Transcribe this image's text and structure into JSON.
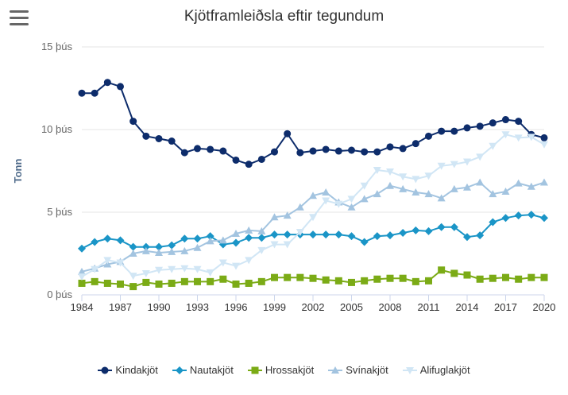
{
  "menu": {
    "icon": "hamburger-menu-icon"
  },
  "chart_data": {
    "type": "line",
    "title": "Kjötframleiðsla eftir tegundum",
    "xlabel": "",
    "ylabel": "Tonn",
    "x": [
      1984,
      1985,
      1986,
      1987,
      1988,
      1989,
      1990,
      1991,
      1992,
      1993,
      1994,
      1995,
      1996,
      1997,
      1998,
      1999,
      2000,
      2001,
      2002,
      2003,
      2004,
      2005,
      2006,
      2007,
      2008,
      2009,
      2010,
      2011,
      2012,
      2013,
      2014,
      2015,
      2016,
      2017,
      2018,
      2019,
      2020
    ],
    "xticks": [
      1984,
      1987,
      1990,
      1993,
      1996,
      1999,
      2002,
      2005,
      2008,
      2011,
      2014,
      2017,
      2020
    ],
    "xlim": [
      1984,
      2020
    ],
    "ylim": [
      0,
      15000
    ],
    "yticks": [
      {
        "value": 0,
        "label": "0 þús"
      },
      {
        "value": 5000,
        "label": "5 þús"
      },
      {
        "value": 10000,
        "label": "10 þús"
      },
      {
        "value": 15000,
        "label": "15 þús"
      }
    ],
    "grid": true,
    "legend_position": "bottom",
    "series": [
      {
        "name": "Kindakjöt",
        "color": "#0d2c6b",
        "marker": "circle",
        "values": [
          12200,
          12200,
          12850,
          12600,
          10500,
          9600,
          9450,
          9300,
          8600,
          8850,
          8800,
          8700,
          8150,
          7900,
          8200,
          8650,
          9750,
          8600,
          8700,
          8800,
          8700,
          8750,
          8650,
          8650,
          8950,
          8850,
          9150,
          9600,
          9900,
          9900,
          10100,
          10200,
          10400,
          10600,
          10500,
          9700,
          9500
        ]
      },
      {
        "name": "Nautakjöt",
        "color": "#1a95c7",
        "marker": "diamond",
        "values": [
          2800,
          3200,
          3400,
          3300,
          2900,
          2900,
          2900,
          3000,
          3400,
          3400,
          3550,
          3050,
          3150,
          3450,
          3450,
          3650,
          3650,
          3650,
          3650,
          3650,
          3650,
          3550,
          3200,
          3550,
          3600,
          3750,
          3900,
          3850,
          4100,
          4100,
          3500,
          3600,
          4400,
          4650,
          4800,
          4850,
          4650
        ]
      },
      {
        "name": "Hrossakjöt",
        "color": "#7bab16",
        "marker": "square",
        "values": [
          700,
          800,
          700,
          650,
          500,
          750,
          650,
          700,
          800,
          800,
          800,
          950,
          650,
          700,
          800,
          1050,
          1050,
          1050,
          1000,
          900,
          850,
          750,
          850,
          950,
          1000,
          1000,
          800,
          850,
          1500,
          1300,
          1200,
          950,
          1000,
          1050,
          950,
          1050,
          1050
        ]
      },
      {
        "name": "Svínakjöt",
        "color": "#a3c4e0",
        "marker": "triangle",
        "values": [
          1400,
          1600,
          1850,
          2000,
          2500,
          2650,
          2550,
          2600,
          2650,
          2850,
          3250,
          3300,
          3700,
          3900,
          3850,
          4700,
          4800,
          5300,
          6000,
          6200,
          5600,
          5300,
          5800,
          6100,
          6600,
          6400,
          6200,
          6100,
          5850,
          6400,
          6500,
          6800,
          6100,
          6250,
          6750,
          6550,
          6800
        ]
      },
      {
        "name": "Alifuglakjöt",
        "color": "#d1e6f5",
        "marker": "triangle-down",
        "values": [
          1100,
          1550,
          2100,
          1950,
          1150,
          1300,
          1500,
          1550,
          1600,
          1550,
          1350,
          1950,
          1750,
          2100,
          2700,
          3050,
          3050,
          3800,
          4700,
          5700,
          5500,
          5800,
          6600,
          7550,
          7450,
          7150,
          7000,
          7200,
          7800,
          7900,
          8050,
          8350,
          9000,
          9700,
          9500,
          9550,
          9100
        ]
      }
    ]
  }
}
